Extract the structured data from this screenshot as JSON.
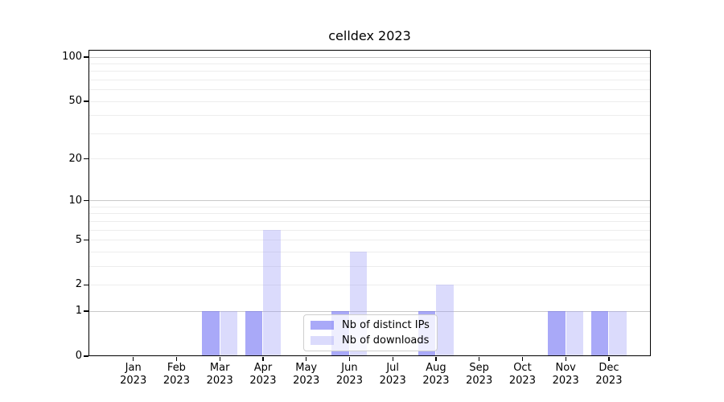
{
  "chart_data": {
    "type": "bar",
    "title": "celldex 2023",
    "categories": [
      "Jan 2023",
      "Feb 2023",
      "Mar 2023",
      "Apr 2023",
      "May 2023",
      "Jun 2023",
      "Jul 2023",
      "Aug 2023",
      "Sep 2023",
      "Oct 2023",
      "Nov 2023",
      "Dec 2023"
    ],
    "series": [
      {
        "name": "Nb of distinct IPs",
        "color": "rgba(98,98,242,0.55)",
        "values": [
          0,
          0,
          1,
          1,
          0,
          1,
          0,
          1,
          0,
          0,
          1,
          1
        ]
      },
      {
        "name": "Nb of downloads",
        "color": "rgba(150,150,246,0.34)",
        "values": [
          0,
          0,
          1,
          6,
          0,
          4,
          0,
          2,
          0,
          0,
          1,
          1
        ]
      }
    ],
    "xlabel": "",
    "ylabel": "",
    "yscale": "log1p",
    "ylim": [
      0,
      110
    ],
    "y_tick_labels": [
      0,
      1,
      2,
      5,
      10,
      20,
      50,
      100
    ],
    "y_gridlines_major": [
      1,
      10,
      100
    ],
    "y_gridlines_minor": [
      2,
      3,
      4,
      5,
      6,
      7,
      8,
      9,
      20,
      30,
      40,
      50,
      60,
      70,
      80,
      90
    ],
    "grid": true,
    "legend_position": "lower center",
    "colors": {
      "grid_major": "#c9c9c9",
      "grid_minor": "#ededed",
      "axis": "#000000",
      "background": "#ffffff"
    }
  }
}
